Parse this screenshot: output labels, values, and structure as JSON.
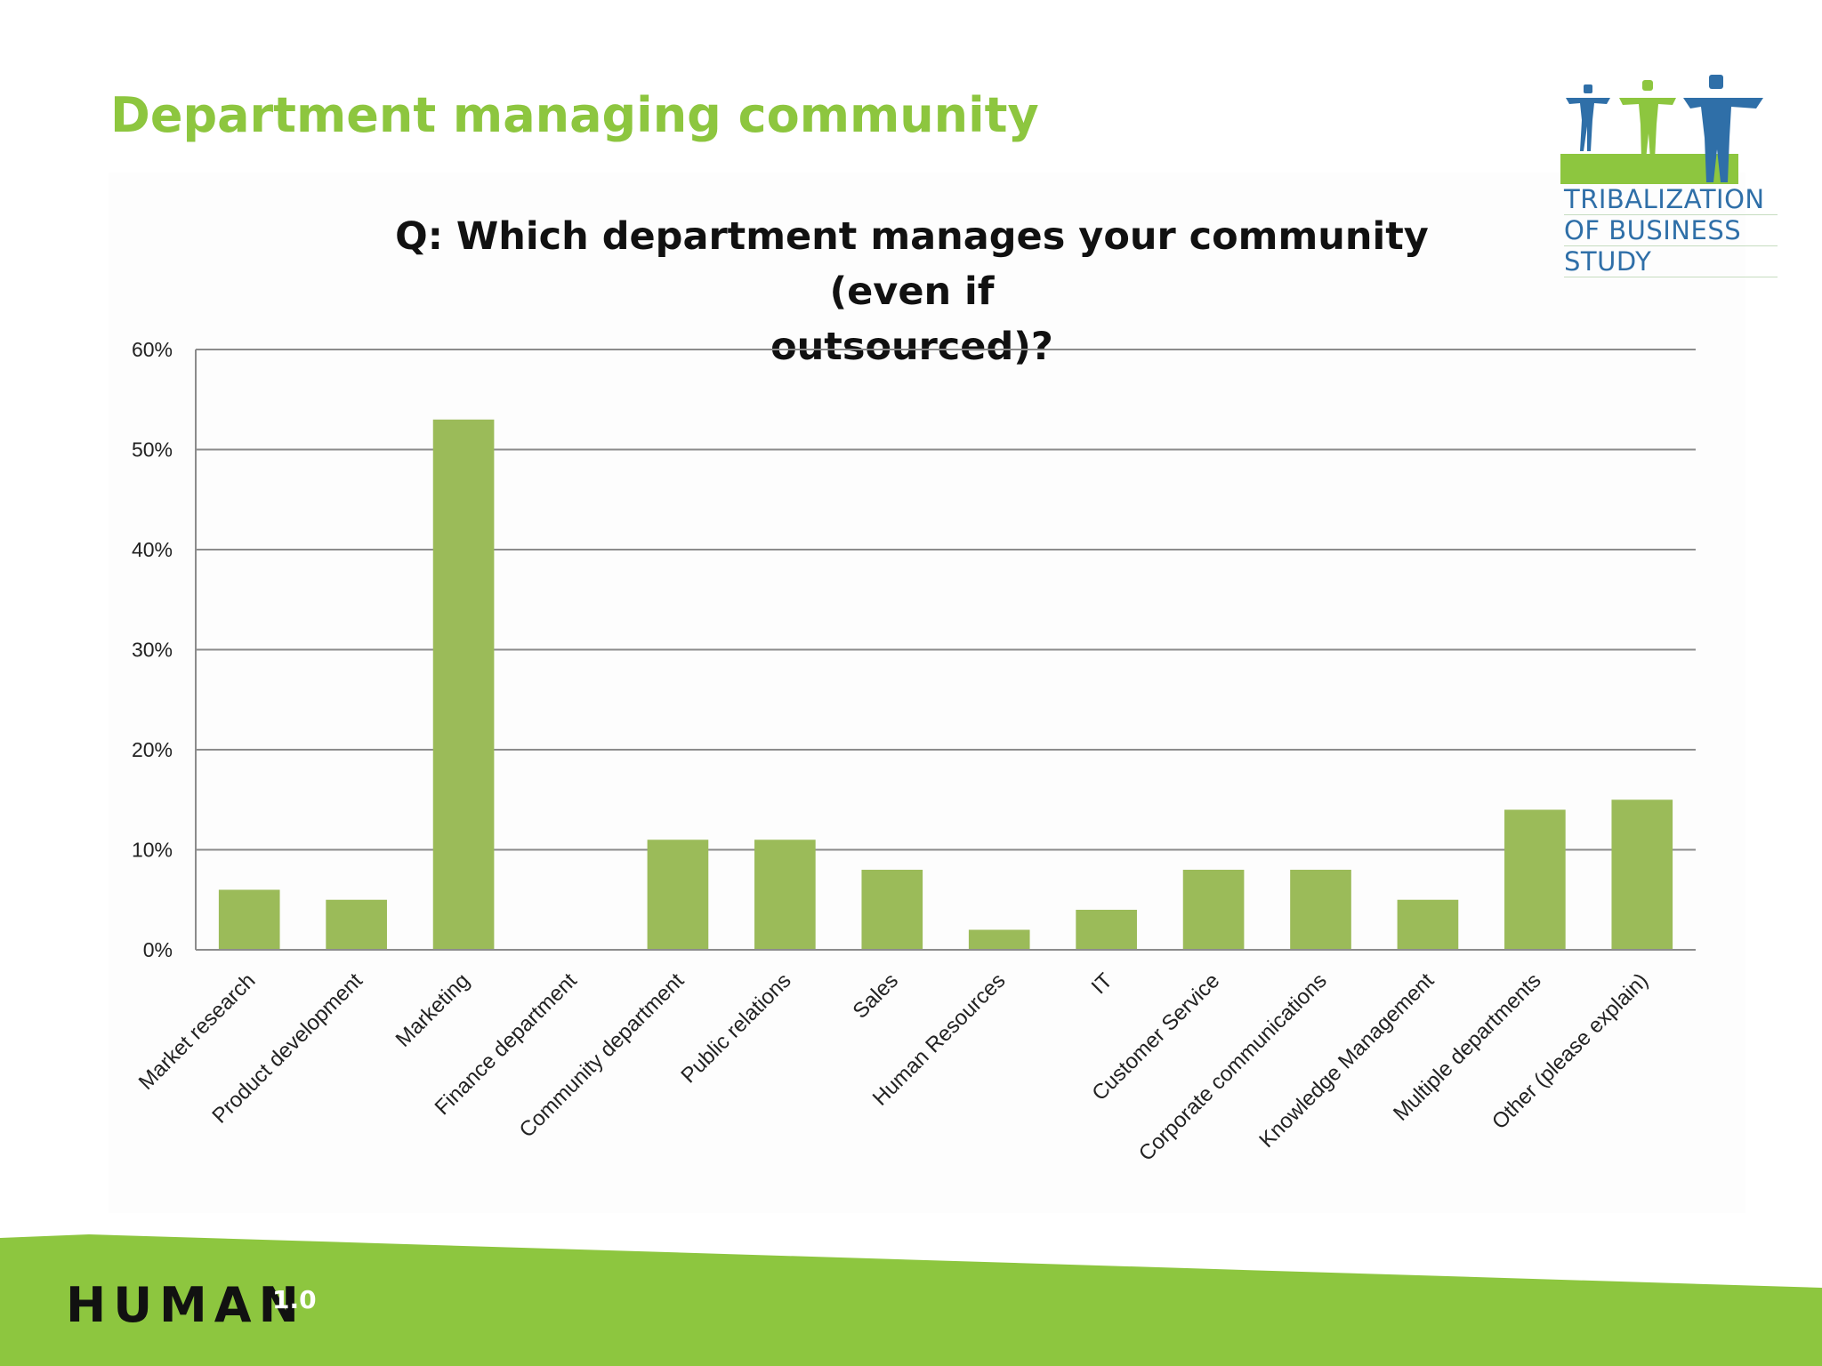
{
  "slide": {
    "title": "Department managing community",
    "brand_text": "HUMAN",
    "brand_version": "1.0",
    "accent_color": "#8dc63f",
    "bar_color": "#9bbb59"
  },
  "logo": {
    "lines": [
      "TRIBALIZATION",
      "OF BUSINESS",
      "STUDY"
    ],
    "icon": "three-people-icon"
  },
  "chart_data": {
    "type": "bar",
    "title": "Q: Which department manages your community  (even if outsourced)?",
    "title_lines": [
      "Q: Which department manages your community  (even if",
      "outsourced)?"
    ],
    "categories": [
      "Market research",
      "Product development",
      "Marketing",
      "Finance department",
      "Community department",
      "Public relations",
      "Sales",
      "Human Resources",
      "IT",
      "Customer Service",
      "Corporate communications",
      "Knowledge Management",
      "Multiple departments",
      "Other (please explain)"
    ],
    "values": [
      6,
      5,
      53,
      0,
      11,
      11,
      8,
      2,
      4,
      8,
      8,
      5,
      14,
      15
    ],
    "value_unit": "%",
    "ylim": [
      0,
      60
    ],
    "yticks": [
      0,
      10,
      20,
      30,
      40,
      50,
      60
    ],
    "ytick_labels": [
      "0%",
      "10%",
      "20%",
      "30%",
      "40%",
      "50%",
      "60%"
    ],
    "grid": true,
    "legend": "none",
    "xlabel": "",
    "ylabel": ""
  }
}
